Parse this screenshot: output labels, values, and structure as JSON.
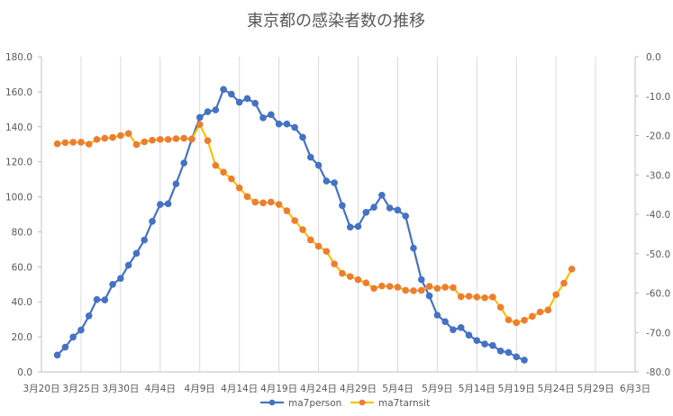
{
  "chart_data": {
    "type": "line",
    "title": "東京都の感染者数の推移",
    "x_ticks": [
      "3月20日",
      "3月25日",
      "3月30日",
      "4月4日",
      "4月9日",
      "4月14日",
      "4月19日",
      "4月24日",
      "4月29日",
      "5月4日",
      "5月9日",
      "5月14日",
      "5月19日",
      "5月24日",
      "5月29日",
      "6月3日"
    ],
    "x_range": [
      "2020-03-20",
      "2020-06-03"
    ],
    "y_left_ticks": [
      "0.0",
      "20.0",
      "40.0",
      "60.0",
      "80.0",
      "100.0",
      "120.0",
      "140.0",
      "160.0",
      "180.0"
    ],
    "y_left_range": [
      0,
      180
    ],
    "y_right_ticks": [
      "0.0",
      "-10.0",
      "-20.0",
      "-30.0",
      "-40.0",
      "-50.0",
      "-60.0",
      "-70.0",
      "-80.0"
    ],
    "y_right_range": [
      -80,
      0
    ],
    "grid": "vertical",
    "legend_position": "bottom",
    "colors": {
      "ma7person": "#4472C4",
      "ma7tarnsit": "#ED7D31",
      "ma7tarnsit_line": "#FFC000"
    },
    "series": [
      {
        "name": "ma7person",
        "axis": "left",
        "start_date": "2020-03-22",
        "values": [
          9.6,
          14.1,
          19.9,
          23.9,
          32.0,
          41.3,
          41.1,
          50.0,
          53.4,
          60.9,
          67.7,
          75.3,
          86.0,
          95.6,
          96.0,
          107.4,
          119.3,
          133.0,
          145.3,
          148.6,
          149.6,
          161.3,
          158.6,
          154.0,
          156.1,
          153.4,
          145.1,
          146.9,
          141.6,
          141.6,
          139.6,
          134.0,
          122.6,
          118.0,
          109.0,
          108.0,
          95.0,
          82.7,
          83.1,
          91.1,
          94.0,
          100.9,
          93.6,
          92.4,
          89.0,
          70.7,
          52.7,
          43.4,
          32.4,
          28.7,
          24.1,
          25.3,
          21.0,
          17.9,
          15.9,
          15.1,
          11.9,
          11.1,
          8.6,
          6.7
        ]
      },
      {
        "name": "ma7tarnsit",
        "axis": "right",
        "start_date": "2020-03-22",
        "values": [
          -22.1,
          -21.8,
          -21.7,
          -21.7,
          -22.2,
          -21.0,
          -20.7,
          -20.5,
          -20.0,
          -19.5,
          -22.3,
          -21.6,
          -21.2,
          -21.0,
          -21.0,
          -20.8,
          -20.7,
          -20.9,
          -17.2,
          -21.3,
          -27.6,
          -29.3,
          -31.0,
          -33.3,
          -35.5,
          -36.9,
          -37.1,
          -36.9,
          -37.5,
          -39.1,
          -41.6,
          -43.9,
          -46.5,
          -48.1,
          -49.4,
          -52.6,
          -55.0,
          -55.8,
          -56.6,
          -57.4,
          -58.8,
          -58.2,
          -58.3,
          -58.5,
          -59.3,
          -59.4,
          -59.3,
          -58.3,
          -58.8,
          -58.5,
          -58.6,
          -60.9,
          -60.8,
          -61.0,
          -61.2,
          -61.0,
          -63.6,
          -66.8,
          -67.5,
          -66.9,
          -65.9,
          -64.8,
          -64.3,
          -60.4,
          -57.5,
          -53.9
        ]
      }
    ]
  }
}
